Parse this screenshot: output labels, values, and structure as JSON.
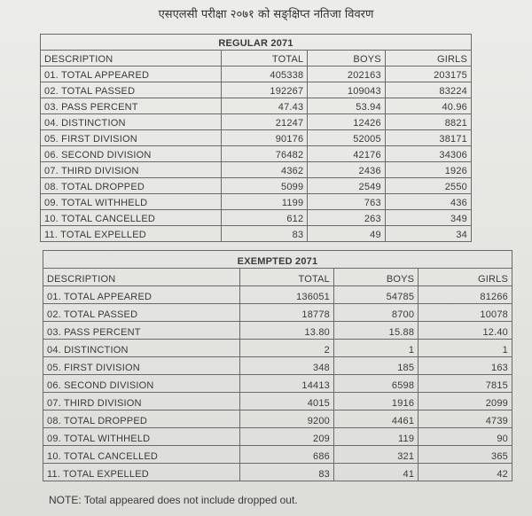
{
  "title": "एसएलसी परीक्षा २०७१ को सङ्क्षिप्त नतिजा विवरण",
  "columns": [
    "DESCRIPTION",
    "TOTAL",
    "BOYS",
    "GIRLS"
  ],
  "regular": {
    "heading": "REGULAR 2071",
    "rows": [
      [
        "01. TOTAL APPEARED",
        "405338",
        "202163",
        "203175"
      ],
      [
        "02. TOTAL PASSED",
        "192267",
        "109043",
        "83224"
      ],
      [
        "03. PASS PERCENT",
        "47.43",
        "53.94",
        "40.96"
      ],
      [
        "04. DISTINCTION",
        "21247",
        "12426",
        "8821"
      ],
      [
        "05. FIRST DIVISION",
        "90176",
        "52005",
        "38171"
      ],
      [
        "06. SECOND DIVISION",
        "76482",
        "42176",
        "34306"
      ],
      [
        "07. THIRD DIVISION",
        "4362",
        "2436",
        "1926"
      ],
      [
        "08. TOTAL DROPPED",
        "5099",
        "2549",
        "2550"
      ],
      [
        "09. TOTAL WITHHELD",
        "1199",
        "763",
        "436"
      ],
      [
        "10. TOTAL CANCELLED",
        "612",
        "263",
        "349"
      ],
      [
        "11. TOTAL EXPELLED",
        "83",
        "49",
        "34"
      ]
    ]
  },
  "exempted": {
    "heading": "EXEMPTED 2071",
    "rows": [
      [
        "01. TOTAL APPEARED",
        "136051",
        "54785",
        "81266"
      ],
      [
        "02. TOTAL PASSED",
        "18778",
        "8700",
        "10078"
      ],
      [
        "03. PASS PERCENT",
        "13.80",
        "15.88",
        "12.40"
      ],
      [
        "04. DISTINCTION",
        "2",
        "1",
        "1"
      ],
      [
        "05. FIRST DIVISION",
        "348",
        "185",
        "163"
      ],
      [
        "06. SECOND DIVISION",
        "14413",
        "6598",
        "7815"
      ],
      [
        "07. THIRD DIVISION",
        "4015",
        "1916",
        "2099"
      ],
      [
        "08. TOTAL DROPPED",
        "9200",
        "4461",
        "4739"
      ],
      [
        "09. TOTAL WITHHELD",
        "209",
        "119",
        "90"
      ],
      [
        "10. TOTAL CANCELLED",
        "686",
        "321",
        "365"
      ],
      [
        "11. TOTAL EXPELLED",
        "83",
        "41",
        "42"
      ]
    ]
  },
  "note": "NOTE: Total appeared does not include dropped out."
}
